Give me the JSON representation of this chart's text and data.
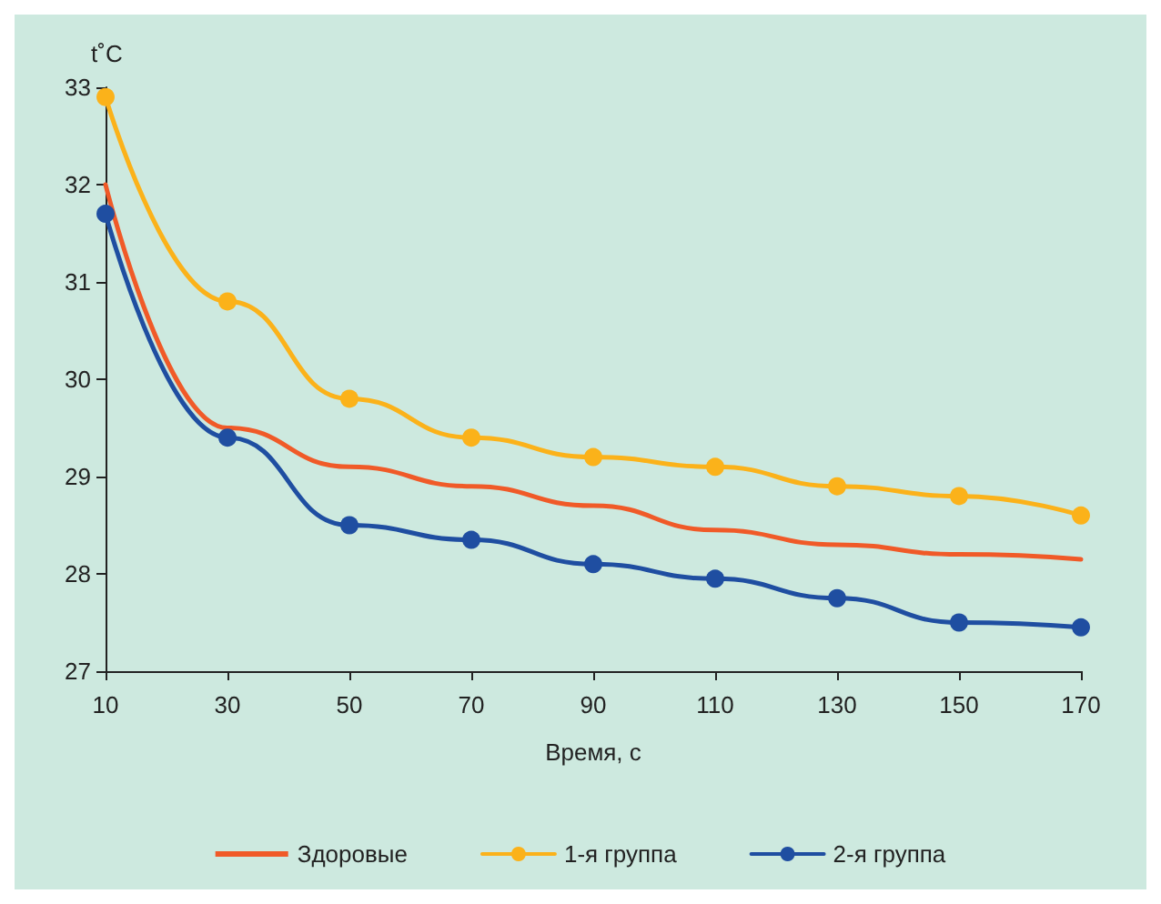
{
  "chart_data": {
    "type": "line",
    "ylabel": "t˚C",
    "xlabel": "Время, с",
    "x": [
      10,
      30,
      50,
      70,
      90,
      110,
      130,
      150,
      170
    ],
    "series": [
      {
        "name": "Здоровые",
        "color": "#f05a28",
        "marker": "none",
        "values": [
          32.0,
          29.5,
          29.1,
          28.9,
          28.7,
          28.45,
          28.3,
          28.2,
          28.15
        ]
      },
      {
        "name": "1-я группа",
        "color": "#fbb21a",
        "values": [
          32.9,
          30.8,
          29.8,
          29.4,
          29.2,
          29.1,
          28.9,
          28.8,
          28.6
        ]
      },
      {
        "name": "2-я группа",
        "color": "#1f4ea1",
        "values": [
          31.7,
          29.4,
          28.5,
          28.35,
          28.1,
          27.95,
          27.75,
          27.5,
          27.45
        ]
      }
    ],
    "xlim": [
      10,
      170
    ],
    "xticks": [
      10,
      30,
      50,
      70,
      90,
      110,
      130,
      150,
      170
    ],
    "ylim": [
      27,
      33
    ],
    "yticks": [
      27,
      28,
      29,
      30,
      31,
      32,
      33
    ],
    "grid": false,
    "legend": "bottom",
    "marker": "circle",
    "line_style": "solid"
  }
}
